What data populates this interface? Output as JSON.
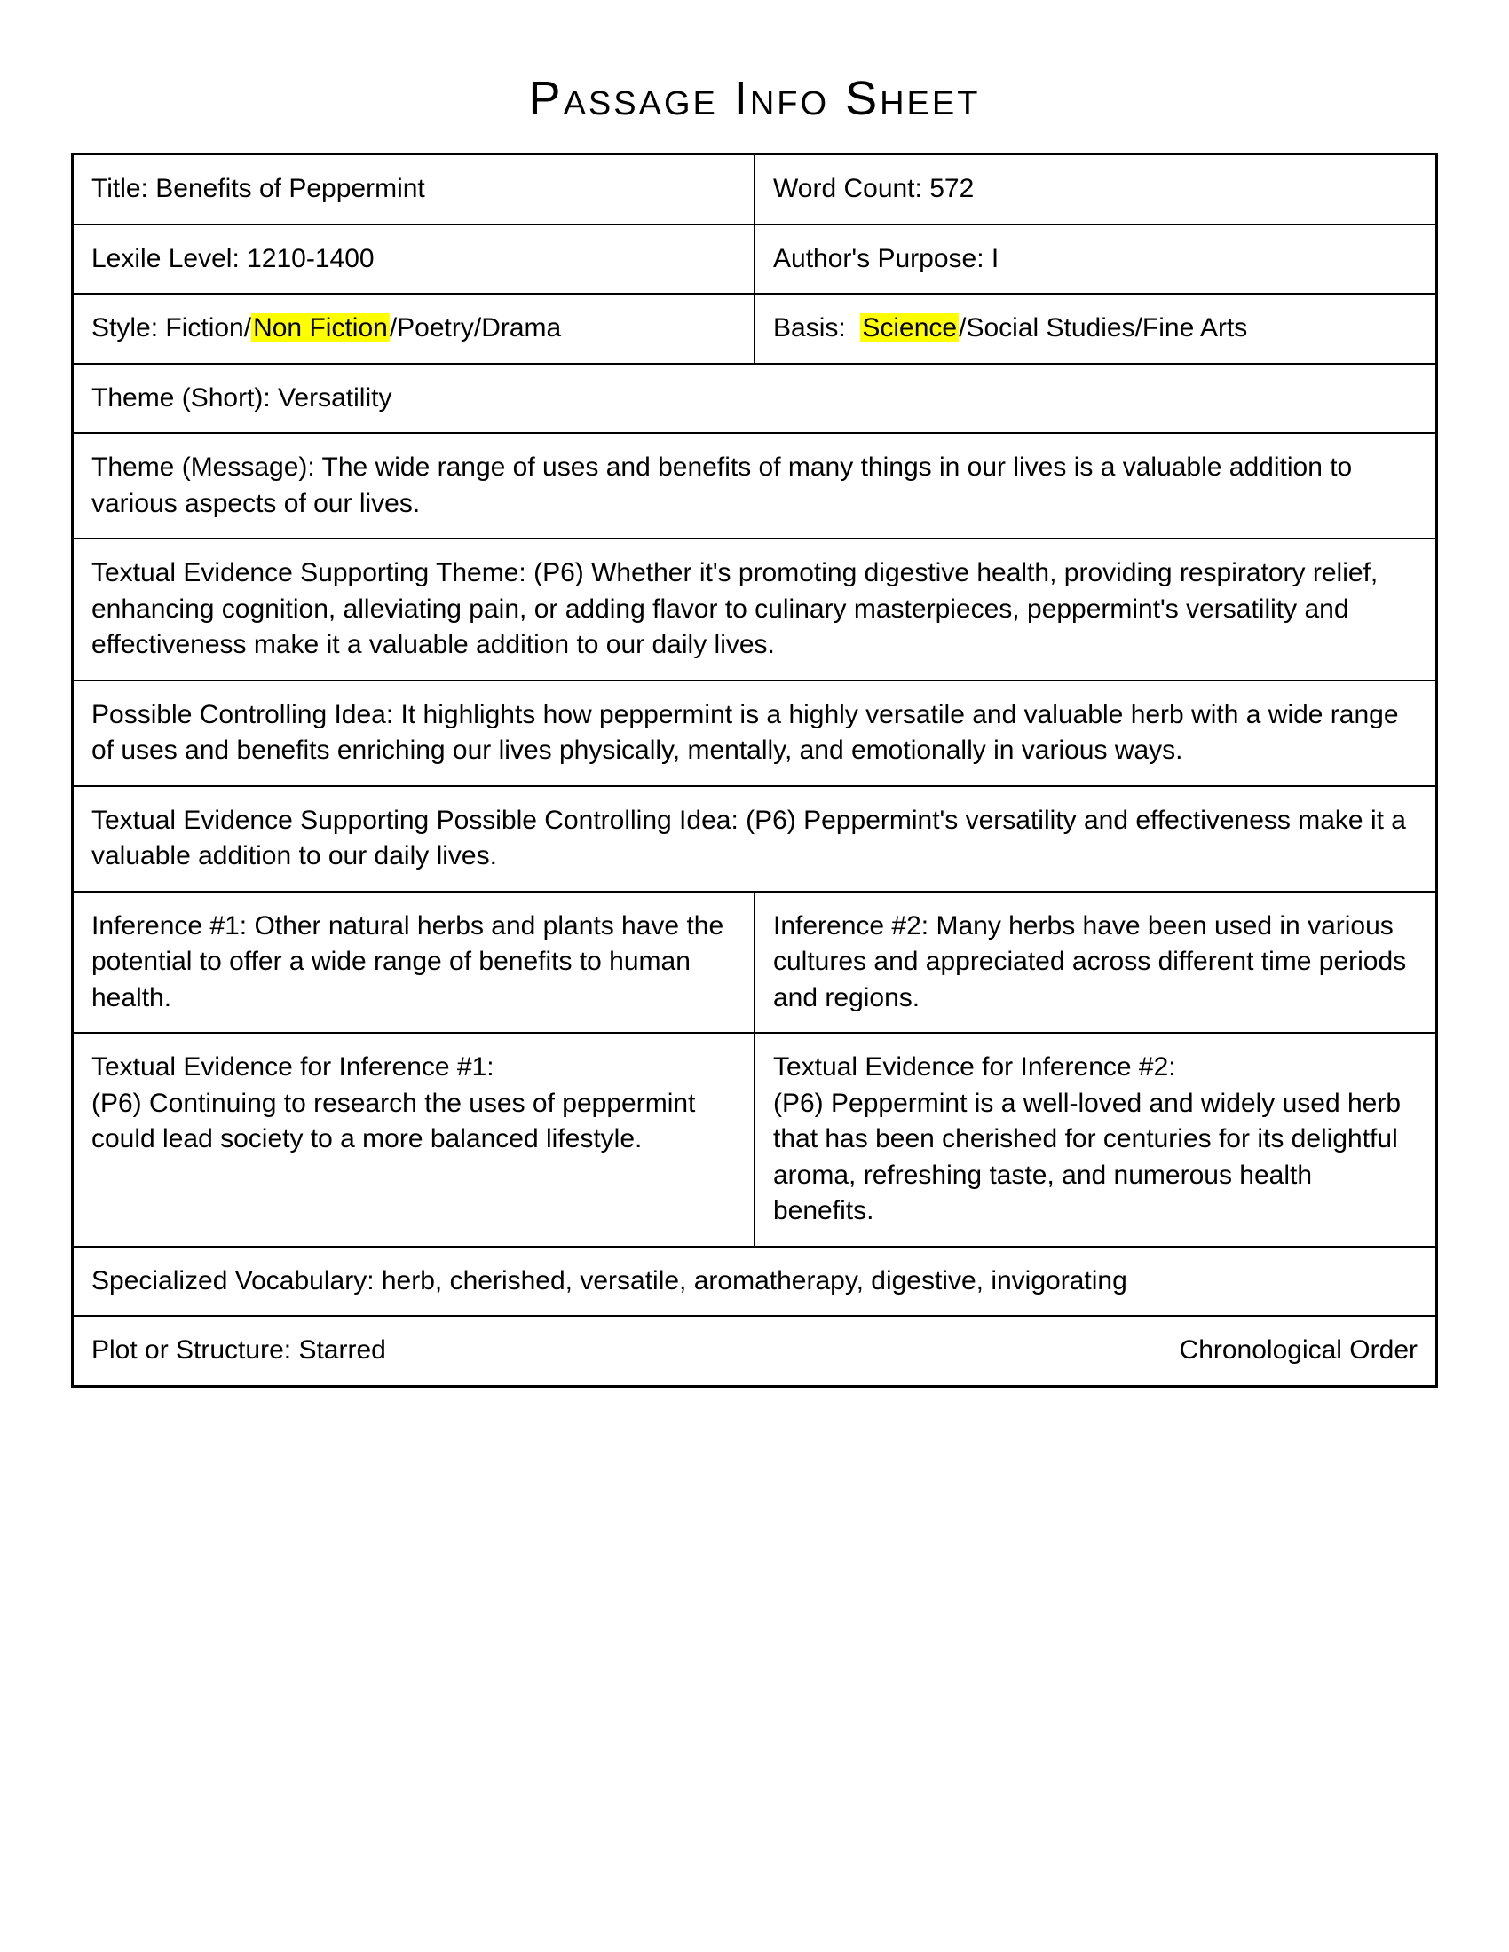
{
  "page_title": "Passage Info Sheet",
  "row1": {
    "title_label": "Title:",
    "title_value": "Benefits of Peppermint",
    "wordcount_label": "Word Count:",
    "wordcount_value": "572"
  },
  "row2": {
    "lexile_label": "Lexile Level:",
    "lexile_value": "1210-1400",
    "purpose_label": "Author's Purpose:",
    "purpose_value": "I"
  },
  "row3": {
    "style_label": "Style:",
    "style_opt1": "Fiction",
    "style_opt2": "Non Fiction",
    "style_opt3": "Poetry",
    "style_opt4": "Drama",
    "basis_label": "Basis:",
    "basis_opt1": "Science",
    "basis_opt2": "Social Studies",
    "basis_opt3": "Fine Arts"
  },
  "theme_short": {
    "label": "Theme (Short):",
    "value": "Versatility"
  },
  "theme_message": {
    "label": "Theme (Message):",
    "value": "The wide range of uses and benefits of many things in our lives is a valuable addition to various aspects of our lives."
  },
  "evidence_theme": {
    "label": "Textual Evidence Supporting Theme:",
    "value": "(P6) Whether it's promoting digestive health, providing respiratory relief, enhancing cognition, alleviating pain, or adding flavor to culinary masterpieces, peppermint's versatility and effectiveness make it a valuable addition to our daily lives."
  },
  "controlling_idea": {
    "label": "Possible Controlling Idea:",
    "value": "It highlights how peppermint is a highly versatile and valuable herb with a wide range of uses and benefits enriching our lives physically, mentally, and emotionally in various ways."
  },
  "evidence_controlling": {
    "label": "Textual Evidence Supporting Possible Controlling Idea:",
    "value": "(P6) Peppermint's versatility and effectiveness make it a valuable addition to our daily lives."
  },
  "inference1": {
    "label": "Inference #1:",
    "value": "Other natural herbs and plants have the potential to offer a wide range of benefits to human health."
  },
  "inference2": {
    "label": "Inference #2:",
    "value": "Many herbs have been used in various cultures and appreciated across different time periods and regions."
  },
  "evidence_inf1": {
    "label": "Textual Evidence for Inference #1:",
    "value": "(P6) Continuing to research the uses of peppermint could lead society to a more balanced lifestyle."
  },
  "evidence_inf2": {
    "label": "Textual Evidence for Inference #2:",
    "value": "(P6) Peppermint is a well-loved and widely used herb that has been cherished for centuries for its delightful aroma, refreshing taste, and numerous health benefits."
  },
  "vocabulary": {
    "label": "Specialized Vocabulary:",
    "value": "herb, cherished, versatile, aromatherapy, digestive, invigorating"
  },
  "plot": {
    "label": "Plot or Structure:",
    "value": "Starred",
    "right": "Chronological Order"
  }
}
